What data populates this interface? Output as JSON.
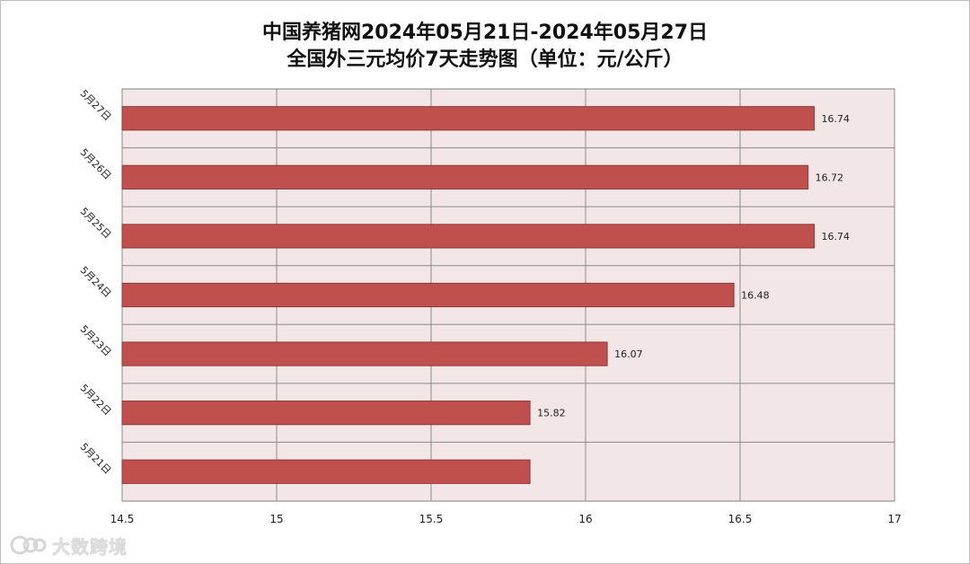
{
  "chart_data": {
    "type": "bar",
    "orientation": "horizontal",
    "title": "中国养猪网2024年05月21日-2024年05月27日",
    "subtitle": "全国外三元均价7天走势图（单位：元/公斤）",
    "categories": [
      "5月27日",
      "5月26日",
      "5月25日",
      "5月24日",
      "5月23日",
      "5月22日",
      "5月21日"
    ],
    "values": [
      16.74,
      16.72,
      16.74,
      16.48,
      16.07,
      15.82,
      15.82
    ],
    "data_labels": [
      "16.74",
      "16.72",
      "16.74",
      "16.48",
      "16.07",
      "15.82",
      ""
    ],
    "xlim": [
      14.5,
      17
    ],
    "x_ticks": [
      14.5,
      15,
      15.5,
      16,
      16.5,
      17
    ],
    "x_tick_labels": [
      "14.5",
      "15",
      "15.5",
      "16",
      "16.5",
      "17"
    ],
    "grid": true,
    "colors": {
      "bar": "#c0504d",
      "bar_border": "#8c3835",
      "plot_bg": "#f2e6e6",
      "grid": "#8c8c8c"
    }
  },
  "watermark": {
    "text": "大数跨境"
  }
}
